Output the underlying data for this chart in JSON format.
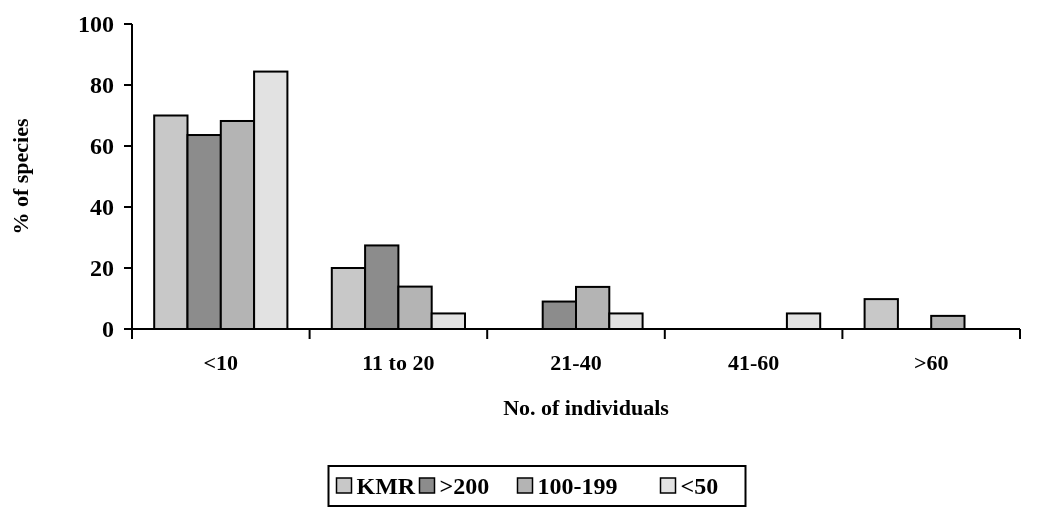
{
  "chart_data": {
    "type": "bar",
    "xlabel": "No. of individuals",
    "ylabel": "% of species",
    "categories": [
      "<10",
      "11 to 20",
      "21-40",
      "41-60",
      ">60"
    ],
    "series": [
      {
        "name": "KMR",
        "color": "#c8c8c8",
        "values": [
          70,
          20,
          0,
          0,
          9.8
        ]
      },
      {
        "name": ">200",
        "color": "#8c8c8c",
        "values": [
          63.6,
          27.4,
          9,
          0,
          0
        ]
      },
      {
        "name": "100-199",
        "color": "#b4b4b4",
        "values": [
          68.2,
          13.9,
          13.8,
          0,
          4.3
        ]
      },
      {
        "name": "<50",
        "color": "#e2e2e2",
        "values": [
          84.4,
          5.1,
          5.1,
          5.1,
          0
        ]
      }
    ],
    "ylim": [
      0,
      100
    ],
    "yticks": [
      0,
      20,
      40,
      60,
      80,
      100
    ],
    "grid": false,
    "legend": "bottom"
  }
}
